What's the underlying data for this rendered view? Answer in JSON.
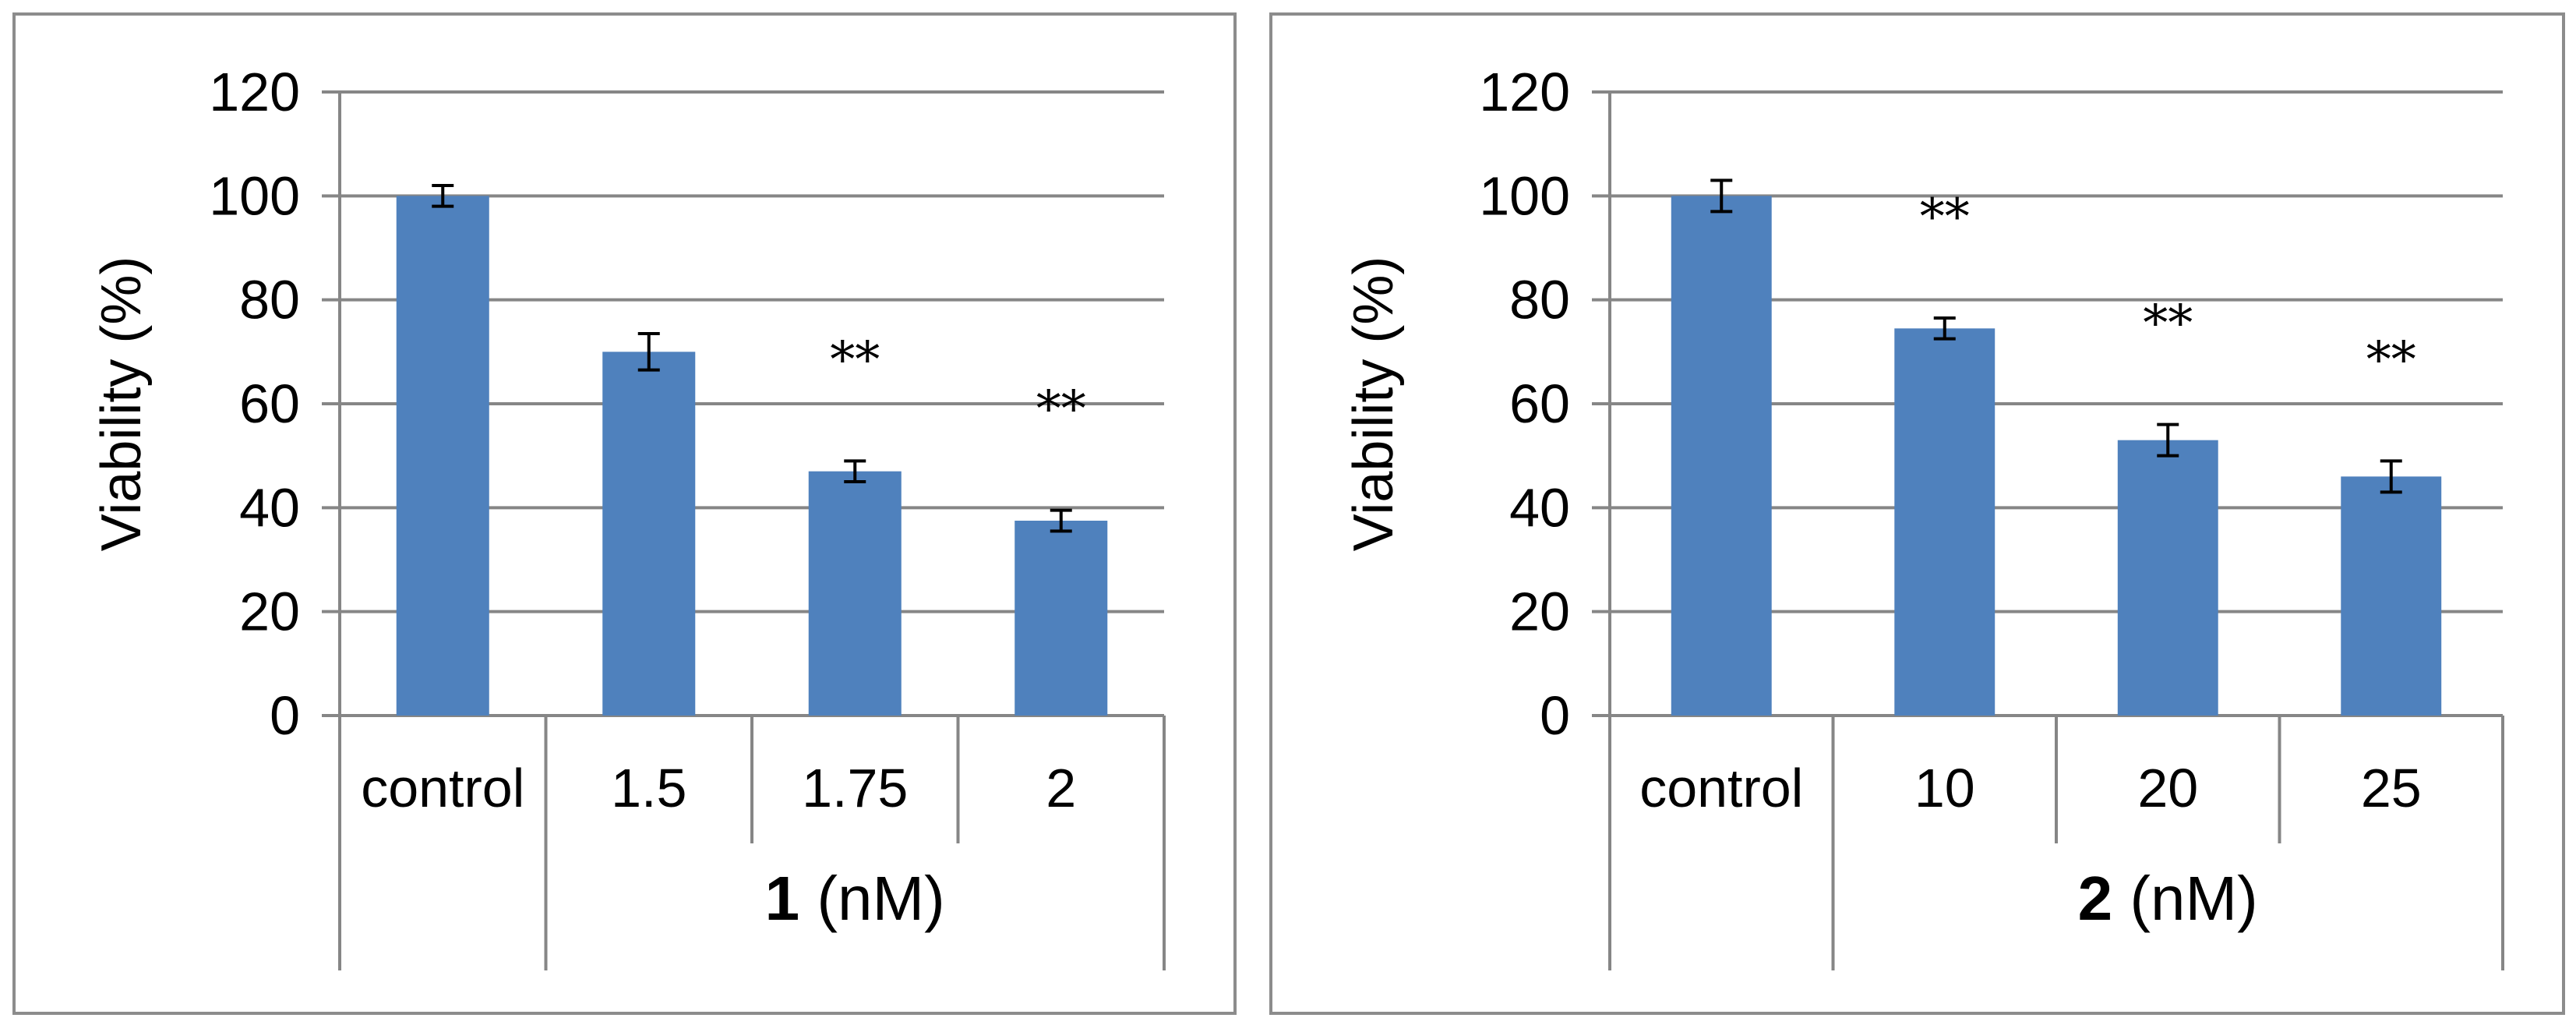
{
  "colors": {
    "bar": "#4f81bd",
    "grid": "#868686",
    "frame": "#8c8c8c",
    "error": "#000000"
  },
  "chart_data": [
    {
      "type": "bar",
      "categories": [
        "control",
        "1.5",
        "1.75",
        "2"
      ],
      "values": [
        100,
        70,
        47,
        37.5
      ],
      "errors": [
        2,
        3.5,
        2,
        2
      ],
      "significance": [
        "",
        "",
        "**",
        "**"
      ],
      "ylabel": "Viability (%)",
      "xlabel_compound": "1",
      "xlabel_unit": "(nM)",
      "ylim": [
        0,
        120
      ],
      "yticks": [
        "0",
        "20",
        "40",
        "60",
        "80",
        "100",
        "120"
      ],
      "grid": true
    },
    {
      "type": "bar",
      "categories": [
        "control",
        "10",
        "20",
        "25"
      ],
      "values": [
        100,
        74.5,
        53,
        46
      ],
      "errors": [
        3,
        2,
        3,
        3
      ],
      "significance": [
        "",
        "**",
        "**",
        "**"
      ],
      "ylabel": "Viability (%)",
      "xlabel_compound": "2",
      "xlabel_unit": "(nM)",
      "ylim": [
        0,
        120
      ],
      "yticks": [
        "0",
        "20",
        "40",
        "60",
        "80",
        "100",
        "120"
      ],
      "grid": true
    }
  ]
}
